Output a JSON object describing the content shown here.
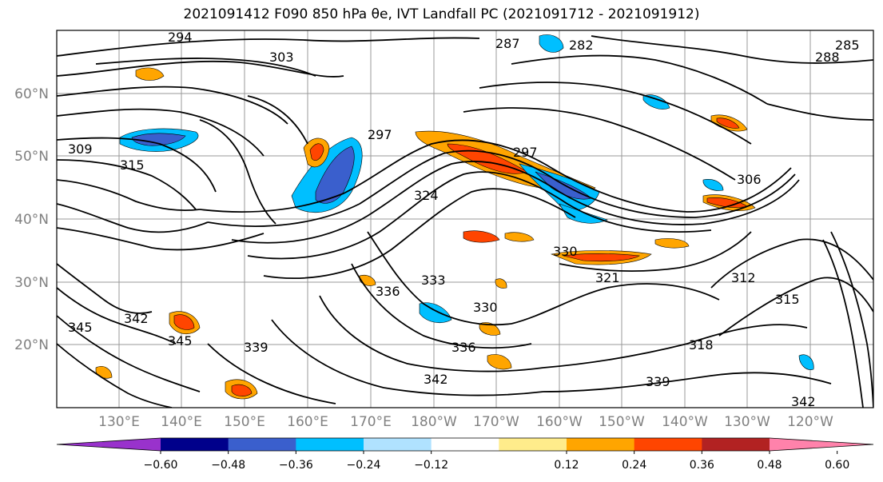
{
  "title": "2021091412 F090 850 hPa θe, IVT Landfall PC (2021091712 - 2021091912)",
  "lat_labels": [
    "60°N",
    "50°N",
    "40°N",
    "30°N",
    "20°N"
  ],
  "lon_labels": [
    "130°E",
    "140°E",
    "150°E",
    "160°E",
    "170°E",
    "180°W",
    "170°W",
    "160°W",
    "150°W",
    "140°W",
    "130°W",
    "120°W"
  ],
  "colorbar": {
    "colors": [
      "#9932cc",
      "#00008b",
      "#3a5fcd",
      "#00bfff",
      "#b0e2ff",
      "#ffffff",
      "#ffec8b",
      "#ffa500",
      "#ff4500",
      "#b22222",
      "#ff82ab"
    ],
    "tick_labels": [
      "−0.60",
      "−0.48",
      "−0.36",
      "−0.24",
      "−0.12",
      "0.12",
      "0.24",
      "0.36",
      "0.48",
      "0.60"
    ]
  },
  "contour_labels": [
    "294",
    "303",
    "309",
    "315",
    "297",
    "297",
    "306",
    "324",
    "330",
    "321",
    "312",
    "315",
    "333",
    "336",
    "330",
    "336",
    "342",
    "339",
    "345",
    "342",
    "345",
    "318",
    "339",
    "342",
    "282",
    "287",
    "288",
    "285"
  ]
}
